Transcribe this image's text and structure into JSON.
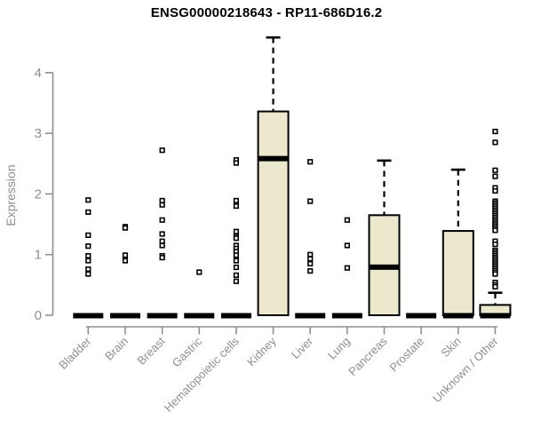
{
  "title": "ENSG00000218643 - RP11-686D16.2",
  "chart_data": {
    "type": "boxplot",
    "title": "ENSG00000218643 - RP11-686D16.2",
    "xlabel": "",
    "ylabel": "Expression",
    "ylim": [
      0,
      4.6
    ],
    "yticks": [
      0,
      1,
      2,
      3,
      4
    ],
    "grid": false,
    "legend": "none",
    "categories": [
      "Bladder",
      "Brain",
      "Breast",
      "Gastric",
      "Hematopoietic cells",
      "Kidney",
      "Liver",
      "Lung",
      "Pancreas",
      "Prostate",
      "Skin",
      "Unknown / Other"
    ],
    "series": [
      {
        "label": "Bladder",
        "median": 0,
        "q1": 0,
        "q3": 0,
        "whisker_low": 0,
        "whisker_high": 0,
        "outliers": [
          1.9,
          1.7,
          1.32,
          1.14,
          0.98,
          0.9,
          0.76,
          0.68
        ]
      },
      {
        "label": "Brain",
        "median": 0,
        "q1": 0,
        "q3": 0,
        "whisker_low": 0,
        "whisker_high": 0,
        "outliers": [
          1.46,
          1.44,
          0.99,
          0.9
        ]
      },
      {
        "label": "Breast",
        "median": 0,
        "q1": 0,
        "q3": 0,
        "whisker_low": 0,
        "whisker_high": 0,
        "outliers": [
          2.72,
          1.89,
          1.82,
          1.57,
          1.34,
          1.22,
          1.15,
          0.98,
          0.95
        ]
      },
      {
        "label": "Gastric",
        "median": 0,
        "q1": 0,
        "q3": 0,
        "whisker_low": 0,
        "whisker_high": 0,
        "outliers": [
          0.71
        ]
      },
      {
        "label": "Hematopoietic cells",
        "median": 0,
        "q1": 0,
        "q3": 0,
        "whisker_low": 0,
        "whisker_high": 0,
        "outliers": [
          2.56,
          2.51,
          1.89,
          1.8,
          1.38,
          1.3,
          1.27,
          1.15,
          1.1,
          1.05,
          0.99,
          0.9,
          0.79,
          0.66,
          0.56
        ]
      },
      {
        "label": "Kidney",
        "median": 2.59,
        "q1": 0,
        "q3": 3.36,
        "whisker_low": 0,
        "whisker_high": 4.58,
        "outliers": []
      },
      {
        "label": "Liver",
        "median": 0,
        "q1": 0,
        "q3": 0,
        "whisker_low": 0,
        "whisker_high": 0,
        "outliers": [
          2.53,
          1.88,
          1.0,
          0.93,
          0.85,
          0.73
        ]
      },
      {
        "label": "Lung",
        "median": 0,
        "q1": 0,
        "q3": 0,
        "whisker_low": 0,
        "whisker_high": 0,
        "outliers": [
          1.57,
          1.15,
          0.78
        ]
      },
      {
        "label": "Pancreas",
        "median": 0.8,
        "q1": 0,
        "q3": 1.65,
        "whisker_low": 0,
        "whisker_high": 2.55,
        "outliers": []
      },
      {
        "label": "Prostate",
        "median": 0,
        "q1": 0,
        "q3": 0,
        "whisker_low": 0,
        "whisker_high": 0,
        "outliers": []
      },
      {
        "label": "Skin",
        "median": 0,
        "q1": 0,
        "q3": 1.39,
        "whisker_low": 0,
        "whisker_high": 2.4,
        "outliers": []
      },
      {
        "label": "Unknown / Other",
        "median": 0,
        "q1": 0,
        "q3": 0.17,
        "whisker_low": 0,
        "whisker_high": 0.37,
        "outliers": [
          3.03,
          2.85,
          2.39,
          2.29,
          2.1,
          2.05,
          1.88,
          1.85,
          1.82,
          1.79,
          1.76,
          1.73,
          1.7,
          1.67,
          1.64,
          1.61,
          1.58,
          1.55,
          1.52,
          1.49,
          1.46,
          1.43,
          1.4,
          1.22,
          1.17,
          1.07,
          1.04,
          1.01,
          0.98,
          0.95,
          0.92,
          0.89,
          0.86,
          0.83,
          0.8,
          0.77,
          0.74,
          0.71,
          0.68,
          0.54,
          0.5,
          0.47
        ]
      }
    ],
    "colors": {
      "box_fill": "#ece8cd",
      "box_border": "#000000",
      "median": "#000000",
      "whisker": "#000000",
      "outlier_stroke": "#000000",
      "outlier_fill": "#ffffff",
      "axis": "#8f8f8f",
      "tick_text": "#8f8f8f",
      "title": "#000000",
      "background": "#ffffff"
    }
  }
}
